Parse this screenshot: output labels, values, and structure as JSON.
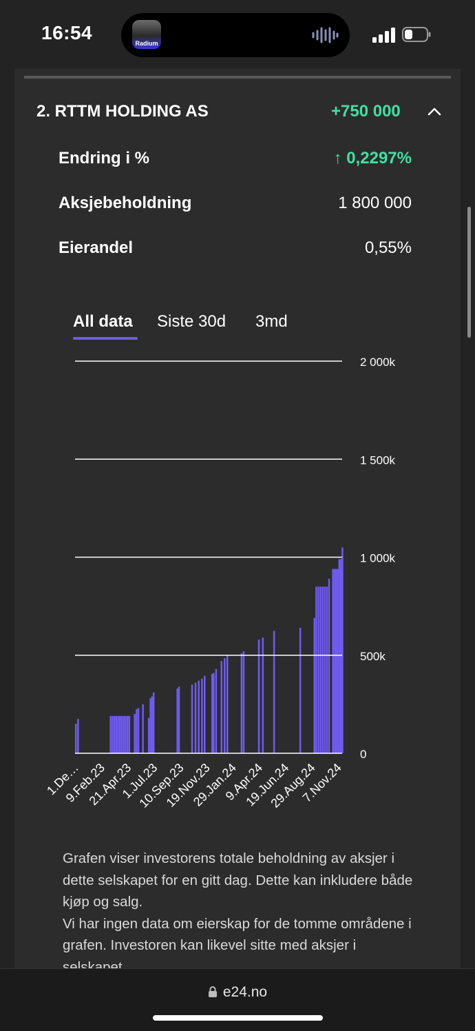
{
  "status_bar": {
    "time": "16:54",
    "island_app": "Radium"
  },
  "holding": {
    "title": "2. RTTM HOLDING AS",
    "change": "+750 000",
    "rows": [
      {
        "label": "Endring i %",
        "value": "↑ 0,2297%"
      },
      {
        "label": "Aksjebeholdning",
        "value": "1 800 000"
      },
      {
        "label": "Eierandel",
        "value": "0,55%"
      }
    ]
  },
  "tabs": [
    "All data",
    "Siste 30d",
    "3md"
  ],
  "active_tab": "All data",
  "chart_data": {
    "type": "bar",
    "title": "",
    "ylim": [
      0,
      2000000
    ],
    "y_ticks": [
      0,
      500000,
      1000000,
      1500000,
      2000000
    ],
    "y_tick_labels": [
      "0",
      "500k",
      "1 000k",
      "1 500k",
      "2 000k"
    ],
    "x_tick_labels": [
      "1.De…",
      "9.Feb.23",
      "21.Apr.23",
      "1.Jul.23",
      "10.Sep.23",
      "19.Nov.23",
      "29.Jan.24",
      "9.Apr.24",
      "19.Jun.24",
      "29.Aug.24",
      "7.Nov.24"
    ],
    "bar_color": "#6f5bf0",
    "bars": [
      {
        "x": 0.0,
        "y": 150000
      },
      {
        "x": 0.008,
        "y": 175000
      },
      {
        "x": 0.13,
        "y": 190000
      },
      {
        "x": 0.137,
        "y": 190000
      },
      {
        "x": 0.144,
        "y": 190000
      },
      {
        "x": 0.151,
        "y": 190000
      },
      {
        "x": 0.158,
        "y": 190000
      },
      {
        "x": 0.165,
        "y": 190000
      },
      {
        "x": 0.172,
        "y": 190000
      },
      {
        "x": 0.179,
        "y": 190000
      },
      {
        "x": 0.186,
        "y": 190000
      },
      {
        "x": 0.193,
        "y": 190000
      },
      {
        "x": 0.2,
        "y": 190000
      },
      {
        "x": 0.22,
        "y": 200000
      },
      {
        "x": 0.227,
        "y": 225000
      },
      {
        "x": 0.234,
        "y": 230000
      },
      {
        "x": 0.251,
        "y": 250000
      },
      {
        "x": 0.273,
        "y": 180000
      },
      {
        "x": 0.279,
        "y": 280000
      },
      {
        "x": 0.285,
        "y": 290000
      },
      {
        "x": 0.291,
        "y": 310000
      },
      {
        "x": 0.38,
        "y": 330000
      },
      {
        "x": 0.386,
        "y": 340000
      },
      {
        "x": 0.435,
        "y": 350000
      },
      {
        "x": 0.448,
        "y": 360000
      },
      {
        "x": 0.46,
        "y": 370000
      },
      {
        "x": 0.472,
        "y": 380000
      },
      {
        "x": 0.482,
        "y": 395000
      },
      {
        "x": 0.51,
        "y": 405000
      },
      {
        "x": 0.516,
        "y": 410000
      },
      {
        "x": 0.525,
        "y": 430000
      },
      {
        "x": 0.545,
        "y": 470000
      },
      {
        "x": 0.557,
        "y": 485000
      },
      {
        "x": 0.567,
        "y": 500000
      },
      {
        "x": 0.62,
        "y": 510000
      },
      {
        "x": 0.628,
        "y": 520000
      },
      {
        "x": 0.685,
        "y": 580000
      },
      {
        "x": 0.7,
        "y": 590000
      },
      {
        "x": 0.742,
        "y": 625000
      },
      {
        "x": 0.84,
        "y": 640000
      },
      {
        "x": 0.893,
        "y": 690000
      },
      {
        "x": 0.9,
        "y": 850000
      },
      {
        "x": 0.908,
        "y": 850000
      },
      {
        "x": 0.916,
        "y": 850000
      },
      {
        "x": 0.924,
        "y": 850000
      },
      {
        "x": 0.932,
        "y": 850000
      },
      {
        "x": 0.94,
        "y": 850000
      },
      {
        "x": 0.948,
        "y": 890000
      },
      {
        "x": 0.962,
        "y": 940000
      },
      {
        "x": 0.968,
        "y": 940000
      },
      {
        "x": 0.974,
        "y": 940000
      },
      {
        "x": 0.98,
        "y": 940000
      },
      {
        "x": 0.986,
        "y": 990000
      },
      {
        "x": 0.992,
        "y": 990000
      },
      {
        "x": 0.998,
        "y": 1050000
      }
    ]
  },
  "description": [
    "Grafen viser investorens totale beholdning av aksjer i dette selskapet for en gitt dag. Dette kan inkludere både kjøp og salg.",
    "Vi har ingen data om eierskap for de tomme områdene i grafen. Investoren kan likevel sitte med aksjer i selskapet."
  ],
  "browser": {
    "url": "e24.no"
  }
}
